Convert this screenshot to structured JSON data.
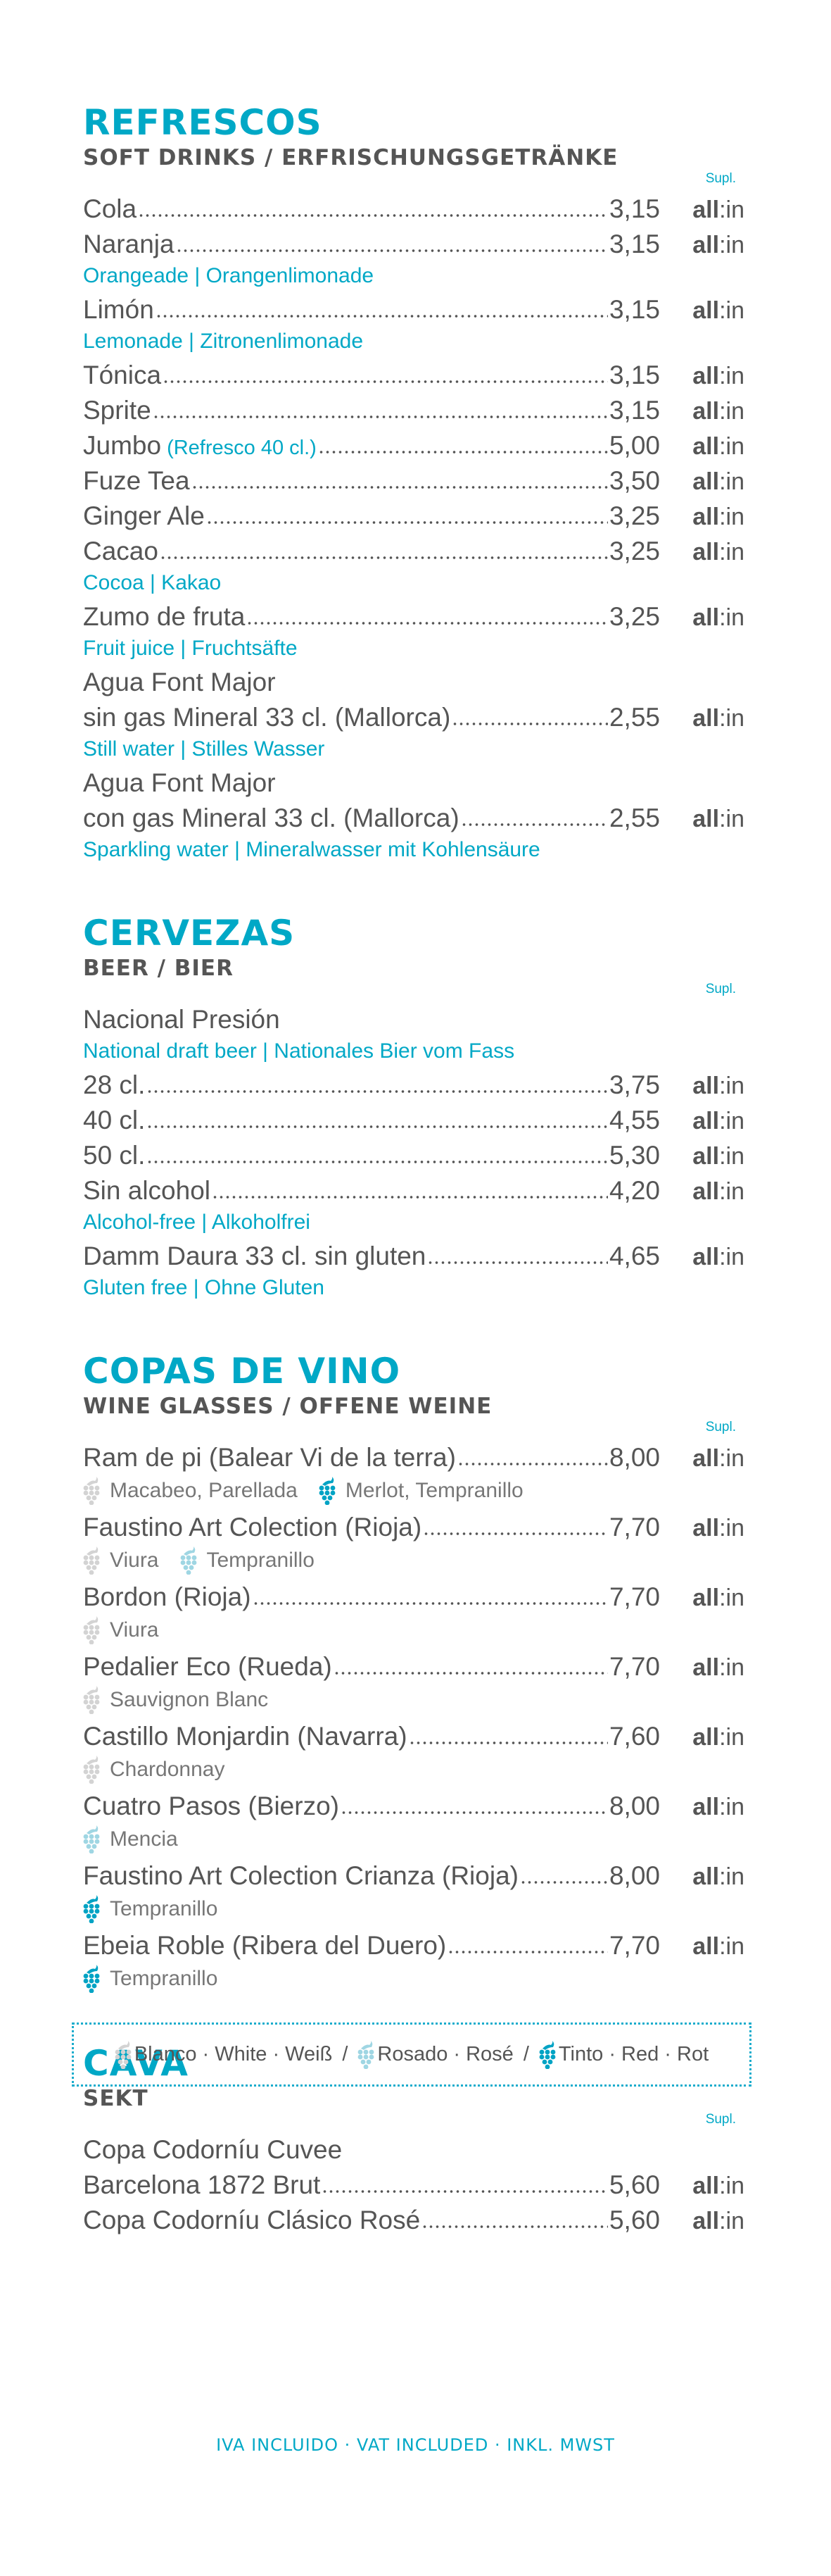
{
  "colors": {
    "accent": "#00a8c6",
    "text": "#555555",
    "grape_blanco": "#d3d3d3",
    "grape_rosado": "#9fd6e3",
    "grape_tinto": "#00a3c4"
  },
  "allin": {
    "bold": "all",
    "rest": ":in"
  },
  "sections": [
    {
      "title": "REFRESCOS",
      "subtitle": "SOFT DRINKS / ERFRISCHUNGSGETRÄNKE",
      "supl": "Supl.",
      "items": [
        {
          "name": "Cola",
          "price": "3,15"
        },
        {
          "name": "Naranja",
          "price": "3,15",
          "sub": "Orangeade | Orangenlimonade"
        },
        {
          "name": "Limón",
          "price": "3,15",
          "sub": "Lemonade | Zitronenlimonade"
        },
        {
          "name": "Tónica",
          "price": "3,15"
        },
        {
          "name": "Sprite",
          "price": "3,15"
        },
        {
          "name": "Jumbo",
          "note": "(Refresco 40 cl.)",
          "price": "5,00"
        },
        {
          "name": "Fuze Tea",
          "price": "3,50"
        },
        {
          "name": "Ginger Ale",
          "price": "3,25"
        },
        {
          "name": "Cacao",
          "price": "3,25",
          "sub": "Cocoa | Kakao"
        },
        {
          "name": "Zumo de fruta",
          "price": "3,25",
          "sub": "Fruit juice | Fruchtsäfte"
        },
        {
          "pre": "Agua Font Major",
          "name": "sin gas Mineral 33 cl. (Mallorca)",
          "price": "2,55",
          "sub": "Still water | Stilles Wasser"
        },
        {
          "pre": "Agua Font Major",
          "name": "con gas Mineral 33 cl. (Mallorca)",
          "price": "2,55",
          "sub": "Sparkling water | Mineralwasser mit Kohlensäure"
        }
      ]
    },
    {
      "title": "CERVEZAS",
      "subtitle": "BEER / BIER",
      "supl": "Supl.",
      "items": [
        {
          "pre": "Nacional Presión",
          "presub": "National draft beer | Nationales Bier vom Fass",
          "name": "28 cl.",
          "price": "3,75"
        },
        {
          "name": "40 cl.",
          "price": "4,55"
        },
        {
          "name": "50 cl.",
          "price": "5,30"
        },
        {
          "name": "Sin alcohol",
          "price": "4,20",
          "sub": "Alcohol-free | Alkoholfrei"
        },
        {
          "name": "Damm Daura 33 cl. sin gluten",
          "price": "4,65",
          "sub": "Gluten free | Ohne Gluten"
        }
      ]
    },
    {
      "title": "COPAS DE VINO",
      "subtitle": "WINE GLASSES / OFFENE WEINE",
      "supl": "Supl.",
      "items": [
        {
          "name": "Ram de pi (Balear Vi de la terra)",
          "price": "8,00",
          "grapes": [
            {
              "type": "blanco",
              "label": "Macabeo, Parellada"
            },
            {
              "type": "tinto",
              "label": "Merlot, Tempranillo"
            }
          ]
        },
        {
          "name": "Faustino Art Colection (Rioja)",
          "price": "7,70",
          "grapes": [
            {
              "type": "blanco",
              "label": "Viura"
            },
            {
              "type": "rosado",
              "label": "Tempranillo"
            }
          ]
        },
        {
          "name": "Bordon (Rioja)",
          "price": "7,70",
          "grapes": [
            {
              "type": "blanco",
              "label": "Viura"
            }
          ]
        },
        {
          "name": "Pedalier Eco (Rueda)",
          "price": "7,70",
          "grapes": [
            {
              "type": "blanco",
              "label": "Sauvignon Blanc"
            }
          ]
        },
        {
          "name": "Castillo Monjardin (Navarra)",
          "price": "7,60",
          "grapes": [
            {
              "type": "blanco",
              "label": "Chardonnay"
            }
          ]
        },
        {
          "name": "Cuatro Pasos (Bierzo)",
          "price": "8,00",
          "grapes": [
            {
              "type": "rosado",
              "label": "Mencia"
            }
          ]
        },
        {
          "name": "Faustino Art Colection Crianza (Rioja)",
          "price": "8,00",
          "grapes": [
            {
              "type": "tinto",
              "label": "Tempranillo"
            }
          ]
        },
        {
          "name": "Ebeia Roble (Ribera del Duero)",
          "price": "7,70",
          "grapes": [
            {
              "type": "tinto",
              "label": "Tempranillo"
            }
          ]
        }
      ]
    },
    {
      "title": "CAVA",
      "subtitle": "SEKT",
      "supl": "Supl.",
      "items": [
        {
          "pre": "Copa Codorníu Cuvee",
          "name": "Barcelona 1872 Brut",
          "price": "5,60"
        },
        {
          "name": "Copa Codorníu Clásico Rosé",
          "price": "5,60"
        }
      ]
    }
  ],
  "legend": [
    {
      "type": "blanco",
      "label": "Blanco · White · Weiß"
    },
    {
      "type": "rosado",
      "label": "Rosado · Rosé"
    },
    {
      "type": "tinto",
      "label": "Tinto · Red · Rot"
    }
  ],
  "legend_separator": "/",
  "footer": "IVA INCLUIDO · VAT INCLUDED · INKL. MWST"
}
